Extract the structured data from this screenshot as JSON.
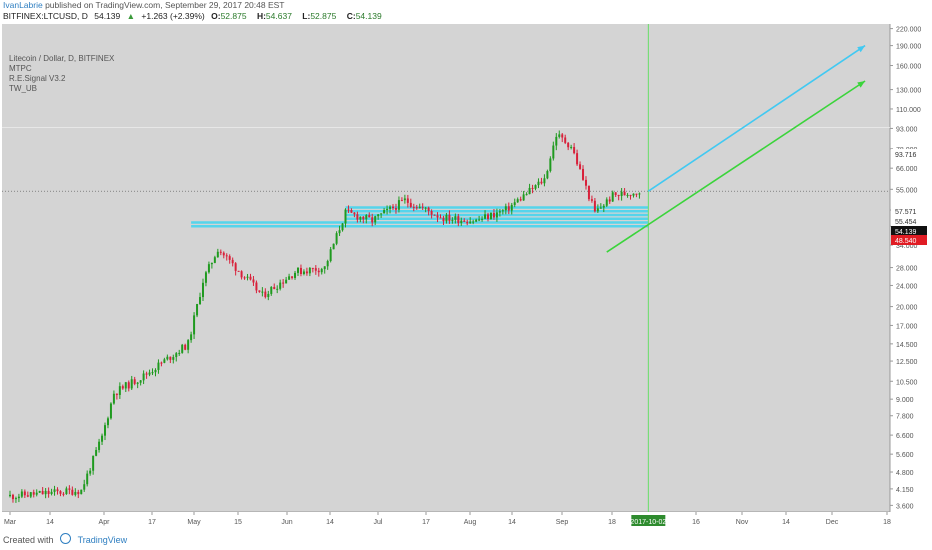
{
  "header": {
    "author": "IvanLabrie",
    "published": "published on TradingView.com, September 29, 2017 20:48 EST",
    "symbol": "BITFINEX:LTCUSD, D",
    "price": "54.139",
    "arrow": "▲",
    "change": "+1.263 (+2.39%)",
    "o_label": "O:",
    "o_value": "52.875",
    "h_label": "H:",
    "h_value": "54.637",
    "l_label": "L:",
    "l_value": "52.875",
    "c_label": "C:",
    "c_value": "54.139"
  },
  "legend": {
    "title": "Litecoin / Dollar, D, BITFINEX",
    "indicators": [
      "MTPC",
      "R.E.Signal V3.2",
      "TW_UB"
    ]
  },
  "footer": {
    "created_with": "Created with",
    "brand": "TradingView"
  },
  "colors": {
    "background": "#d4d4d4",
    "up": "#1f9a1f",
    "down": "#d8203a",
    "projection_cyan": "#41c9f2",
    "projection_green": "#3bd43b",
    "support_zone": "#3fd4f0",
    "vertical_line": "#66dd66",
    "date_highlight": "#2e8b2e",
    "price_label_dark": "#111111",
    "price_label_red": "#e01c24"
  },
  "chart_data": {
    "type": "candlestick",
    "title": "Litecoin / Dollar, D, BITFINEX",
    "ylabel": "",
    "xlabel": "",
    "y_scale": "log",
    "ylim": [
      3.4,
      225
    ],
    "grid": false,
    "y_ticks": [
      "3.600",
      "4.150",
      "4.800",
      "5.600",
      "6.600",
      "7.800",
      "9.000",
      "10.500",
      "12.500",
      "14.500",
      "17.000",
      "20.000",
      "24.000",
      "28.000",
      "34.000",
      "40.000",
      "46.000",
      "55.000",
      "66.000",
      "78.000",
      "93.000",
      "110.000",
      "130.000",
      "160.000",
      "190.000",
      "220.000"
    ],
    "x_ticks": [
      "Mar",
      "14",
      "Apr",
      "17",
      "May",
      "15",
      "Jun",
      "14",
      "Jul",
      "17",
      "Aug",
      "14",
      "Sep",
      "18",
      "16",
      "Nov",
      "14",
      "Dec",
      "18"
    ],
    "x_start": "2017-03-01",
    "highlight_date": "2017-10-02",
    "approx_closes": [
      {
        "date": "2017-03-01",
        "close": 3.9
      },
      {
        "date": "2017-03-25",
        "close": 4.1
      },
      {
        "date": "2017-04-01",
        "close": 6.5
      },
      {
        "date": "2017-04-05",
        "close": 9.5
      },
      {
        "date": "2017-04-15",
        "close": 11.0
      },
      {
        "date": "2017-04-30",
        "close": 14.5
      },
      {
        "date": "2017-05-05",
        "close": 25.0
      },
      {
        "date": "2017-05-10",
        "close": 33.0
      },
      {
        "date": "2017-05-25",
        "close": 22.0
      },
      {
        "date": "2017-06-05",
        "close": 27.0
      },
      {
        "date": "2017-06-15",
        "close": 28.0
      },
      {
        "date": "2017-06-22",
        "close": 45.0
      },
      {
        "date": "2017-07-01",
        "close": 42.0
      },
      {
        "date": "2017-07-12",
        "close": 50.0
      },
      {
        "date": "2017-07-25",
        "close": 43.0
      },
      {
        "date": "2017-08-05",
        "close": 42.0
      },
      {
        "date": "2017-08-15",
        "close": 46.0
      },
      {
        "date": "2017-08-28",
        "close": 60.0
      },
      {
        "date": "2017-09-01",
        "close": 88.0
      },
      {
        "date": "2017-09-06",
        "close": 80.0
      },
      {
        "date": "2017-09-14",
        "close": 45.0
      },
      {
        "date": "2017-09-20",
        "close": 52.0
      },
      {
        "date": "2017-09-29",
        "close": 54.139
      }
    ],
    "price_labels": [
      {
        "value": "93.716",
        "style": "plain"
      },
      {
        "value": "57.571",
        "style": "plain"
      },
      {
        "value": "55.454",
        "style": "plain"
      },
      {
        "value": "54.139",
        "style": "dark"
      },
      {
        "value": "48.540",
        "style": "red"
      }
    ],
    "projections": [
      {
        "color": "cyan",
        "from": {
          "date": "2017-10-02",
          "price": 54.1
        },
        "to": {
          "date": "2017-12-14",
          "price": 190
        }
      },
      {
        "color": "green",
        "from": {
          "date": "2017-09-18",
          "price": 32
        },
        "to": {
          "date": "2017-12-14",
          "price": 140
        }
      }
    ],
    "support_zone": {
      "low": 40,
      "high": 47,
      "from": "2017-05-01",
      "to": "2017-10-02"
    }
  }
}
